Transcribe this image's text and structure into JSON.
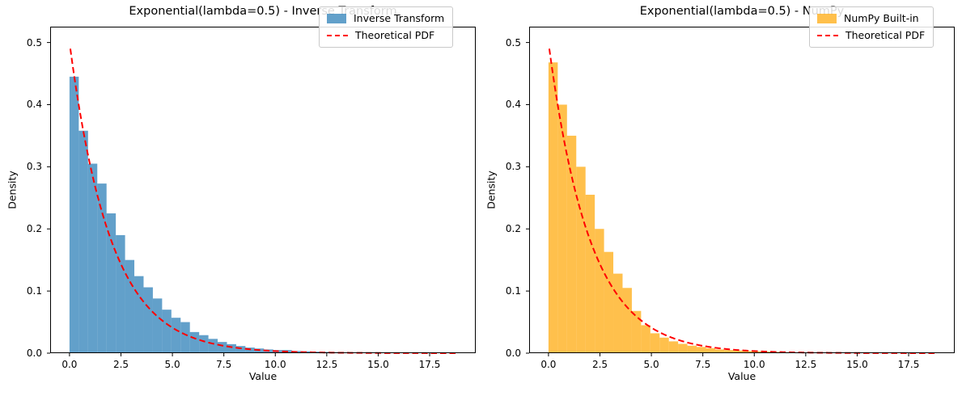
{
  "figure": {
    "background": "#ffffff"
  },
  "chart_data": [
    {
      "type": "bar",
      "subtype": "histogram-with-pdf-line",
      "title": "Exponential(lambda=0.5) - Inverse Transform",
      "xlabel": "Value",
      "ylabel": "Density",
      "series_label": "Inverse Transform",
      "bar_color": "#1f77b4",
      "bar_fill": "rgba(31,119,180,0.7)",
      "bins": {
        "start": 0,
        "width": 0.45
      },
      "densities": [
        0.445,
        0.358,
        0.305,
        0.273,
        0.225,
        0.19,
        0.15,
        0.124,
        0.106,
        0.088,
        0.07,
        0.057,
        0.05,
        0.034,
        0.029,
        0.023,
        0.018,
        0.0145,
        0.0115,
        0.009,
        0.0075,
        0.006,
        0.005,
        0.005,
        0.0035,
        0.003,
        0.0024,
        0.002,
        0.0016,
        0.0013,
        0.001,
        0.0009,
        0.0007,
        0.0006,
        0.0005,
        0.0004,
        0.0003,
        0.0003,
        0.0002,
        0.0002,
        0.0001,
        0.0001
      ],
      "pdf_line": {
        "label": "Theoretical PDF",
        "color": "#ff0000",
        "style": "dashed",
        "amplitude": 0.5,
        "rate": 0.5,
        "x_start": 0.04,
        "x_end": 18.82
      },
      "legend": [
        {
          "label": "Inverse Transform",
          "swatch": "patch"
        },
        {
          "label": "Theoretical PDF",
          "swatch": "dashed-line"
        }
      ],
      "axes": {
        "xlim": [
          -0.94,
          19.74
        ],
        "ylim": [
          0,
          0.5255
        ],
        "xticks": [
          0,
          2.5,
          5,
          7.5,
          10,
          12.5,
          15,
          17.5
        ],
        "xtick_labels": [
          "0.0",
          "2.5",
          "5.0",
          "7.5",
          "10.0",
          "12.5",
          "15.0",
          "17.5"
        ],
        "yticks": [
          0,
          0.1,
          0.2,
          0.3,
          0.4,
          0.5
        ],
        "ytick_labels": [
          "0.0",
          "0.1",
          "0.2",
          "0.3",
          "0.4",
          "0.5"
        ],
        "grid": false,
        "legend_position": "upper right"
      }
    },
    {
      "type": "bar",
      "subtype": "histogram-with-pdf-line",
      "title": "Exponential(lambda=0.5) - NumPy",
      "xlabel": "Value",
      "ylabel": "Density",
      "series_label": "NumPy Built-in",
      "bar_color": "#ffa500",
      "bar_fill": "rgba(255,165,0,0.7)",
      "bins": {
        "start": 0,
        "width": 0.45
      },
      "densities": [
        0.468,
        0.4,
        0.35,
        0.3,
        0.255,
        0.2,
        0.163,
        0.128,
        0.105,
        0.068,
        0.045,
        0.032,
        0.025,
        0.019,
        0.015,
        0.012,
        0.01,
        0.008,
        0.006,
        0.005,
        0.0042,
        0.0035,
        0.003,
        0.0025,
        0.002,
        0.0016,
        0.0013,
        0.0011,
        0.0009,
        0.0007,
        0.0006,
        0.0005,
        0.0004,
        0.0004,
        0.0003,
        0.0002,
        0.0002,
        0.0001,
        0.0001,
        0.0001,
        0.0001,
        0.0001
      ],
      "pdf_line": {
        "label": "Theoretical PDF",
        "color": "#ff0000",
        "style": "dashed",
        "amplitude": 0.5,
        "rate": 0.5,
        "x_start": 0.04,
        "x_end": 18.82
      },
      "legend": [
        {
          "label": "NumPy Built-in",
          "swatch": "patch"
        },
        {
          "label": "Theoretical PDF",
          "swatch": "dashed-line"
        }
      ],
      "axes": {
        "xlim": [
          -0.94,
          19.74
        ],
        "ylim": [
          0,
          0.5255
        ],
        "xticks": [
          0,
          2.5,
          5,
          7.5,
          10,
          12.5,
          15,
          17.5
        ],
        "xtick_labels": [
          "0.0",
          "2.5",
          "5.0",
          "7.5",
          "10.0",
          "12.5",
          "15.0",
          "17.5"
        ],
        "yticks": [
          0,
          0.1,
          0.2,
          0.3,
          0.4,
          0.5
        ],
        "ytick_labels": [
          "0.0",
          "0.1",
          "0.2",
          "0.3",
          "0.4",
          "0.5"
        ],
        "grid": false,
        "legend_position": "upper right"
      }
    }
  ]
}
